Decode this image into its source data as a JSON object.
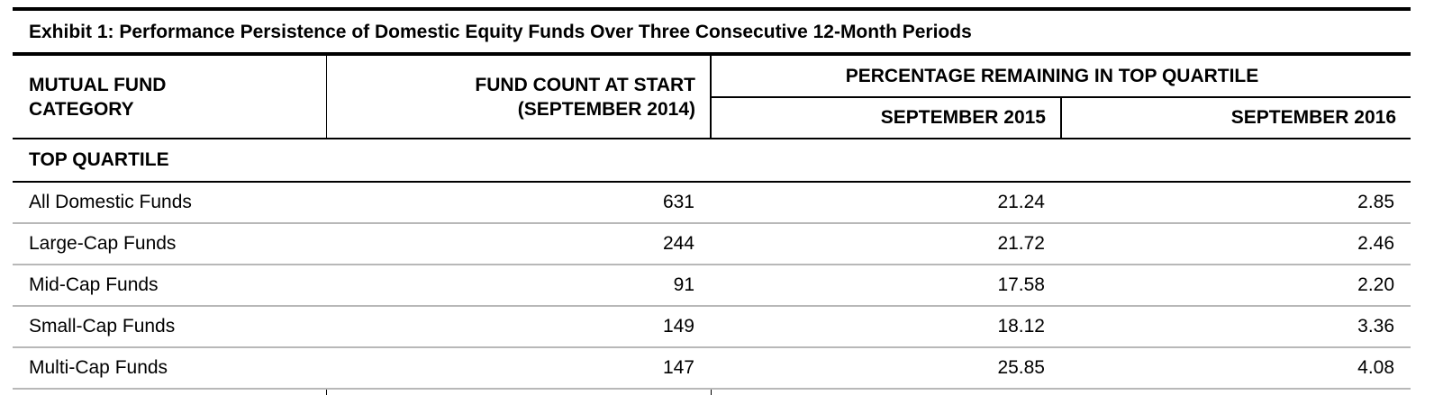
{
  "title": "Exhibit 1: Performance Persistence of Domestic Equity Funds Over Three Consecutive 12-Month Periods",
  "headers": {
    "category_line1": "MUTUAL FUND",
    "category_line2": "CATEGORY",
    "count_line1": "FUND COUNT AT START",
    "count_line2": "(SEPTEMBER 2014)",
    "group": "PERCENTAGE REMAINING IN TOP QUARTILE",
    "period1": "SEPTEMBER 2015",
    "period2": "SEPTEMBER 2016"
  },
  "section": "TOP QUARTILE",
  "rows": [
    {
      "category": "All Domestic Funds",
      "count": "631",
      "sep2015": "21.24",
      "sep2016": "2.85"
    },
    {
      "category": "Large-Cap Funds",
      "count": "244",
      "sep2015": "21.72",
      "sep2016": "2.46"
    },
    {
      "category": "Mid-Cap Funds",
      "count": "91",
      "sep2015": "17.58",
      "sep2016": "2.20"
    },
    {
      "category": "Small-Cap Funds",
      "count": "149",
      "sep2015": "18.12",
      "sep2016": "3.36"
    },
    {
      "category": "Multi-Cap Funds",
      "count": "147",
      "sep2015": "25.85",
      "sep2016": "4.08"
    }
  ]
}
